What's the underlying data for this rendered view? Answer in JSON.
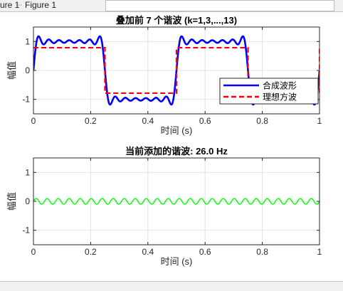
{
  "window": {
    "tab_prefix": "ure 1",
    "title": "Figure 1",
    "tab_arrow": "⋯"
  },
  "chart_data": [
    {
      "type": "line",
      "title": "叠加前 7 个谐波 (k=1,3,...,13)",
      "xlabel": "时间 (s)",
      "ylabel": "幅值",
      "xlim": [
        0,
        1
      ],
      "ylim": [
        -1.5,
        1.5
      ],
      "xticks": [
        0,
        0.2,
        0.4,
        0.6,
        0.8,
        1
      ],
      "xtick_labels": [
        "0",
        "0.2",
        "0.4",
        "0.6",
        "0.8",
        "1"
      ],
      "yticks": [
        -1,
        0,
        1
      ],
      "ytick_labels": [
        "-1",
        "0",
        "1"
      ],
      "grid": true,
      "legend_position": "lower-right",
      "series": [
        {
          "name": "合成波形",
          "color": "#0000ff",
          "style": "solid",
          "formula": "sum over k=1,3,...,13 of (4/π)/k · sin(2π·2k·t)",
          "fundamental_hz": 2,
          "harmonics": [
            1,
            3,
            5,
            7,
            9,
            11,
            13
          ]
        },
        {
          "name": "理想方波",
          "color": "#ff0000",
          "style": "dashed",
          "fundamental_hz": 2,
          "amplitude": 0.785
        }
      ]
    },
    {
      "type": "line",
      "title": "当前添加的谐波: 26.0 Hz",
      "xlabel": "时间 (s)",
      "ylabel": "幅值",
      "xlim": [
        0,
        1
      ],
      "ylim": [
        -1.5,
        1.5
      ],
      "xticks": [
        0,
        0.2,
        0.4,
        0.6,
        0.8,
        1
      ],
      "xtick_labels": [
        "0",
        "0.2",
        "0.4",
        "0.6",
        "0.8",
        "1"
      ],
      "yticks": [
        -1,
        0,
        1
      ],
      "ytick_labels": [
        "-1",
        "0",
        "1"
      ],
      "grid": true,
      "series": [
        {
          "color": "#00ff00",
          "style": "solid",
          "frequency_hz": 26,
          "amplitude": 0.098
        }
      ]
    }
  ]
}
